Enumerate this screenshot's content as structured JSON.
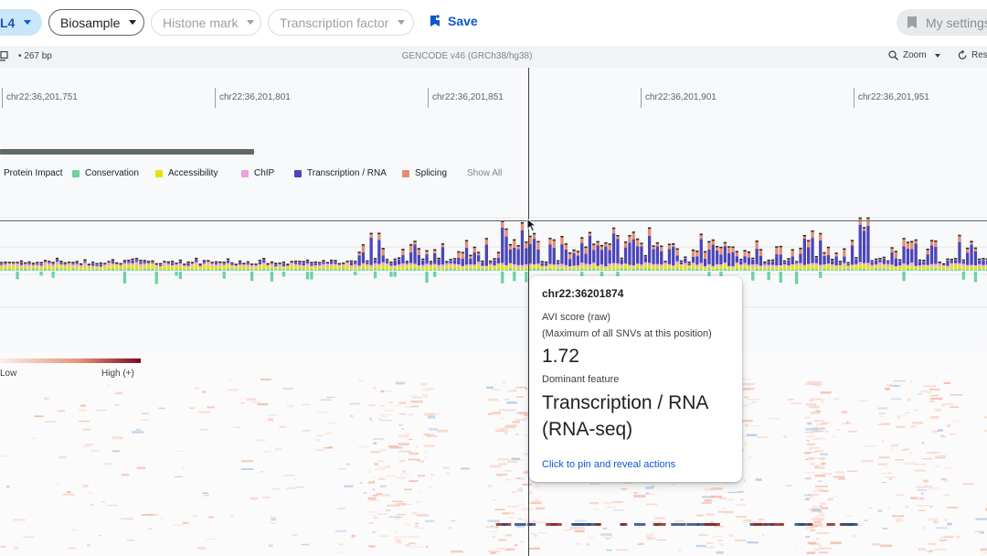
{
  "toolbar": {
    "cell_chip_label": "L4",
    "biosample_label": "Biosample",
    "histone_label": "Histone mark",
    "tf_label": "Transcription factor",
    "save_label": "Save",
    "settings_label": "My settings"
  },
  "infobar": {
    "bp_label": "• 267 bp",
    "assembly_label": "GENCODE v46 (GRCh38/hg38)",
    "zoom_label": "Zoom",
    "reset_label": "Res"
  },
  "ruler": {
    "ticks": [
      "chr22:36,201,751",
      "chr22:36,201,801",
      "chr22:36,201,851",
      "chr22:36,201,901",
      "chr22:36,201,951"
    ]
  },
  "legend": {
    "items": [
      {
        "label": "Protein Impact",
        "color": "#9e9e9e"
      },
      {
        "label": "Conservation",
        "color": "#6fd1a4"
      },
      {
        "label": "Accessibility",
        "color": "#e4e400"
      },
      {
        "label": "ChIP",
        "color": "#e9a0e6"
      },
      {
        "label": "Transcription / RNA",
        "color": "#4b45b8"
      },
      {
        "label": "Splicing",
        "color": "#e58e72"
      }
    ],
    "show_all_label": "Show All"
  },
  "heatmap": {
    "low_label": "Low",
    "high_label": "High (+)"
  },
  "tooltip": {
    "position": "chr22:36201874",
    "score_label": "AVI score (raw)",
    "score_sub": "(Maximum of all SNVs at this position)",
    "score_value": "1.72",
    "dominant_label": "Dominant feature",
    "dominant_value": "Transcription / RNA (RNA-seq)",
    "action_label": "Click to pin and reveal actions"
  }
}
